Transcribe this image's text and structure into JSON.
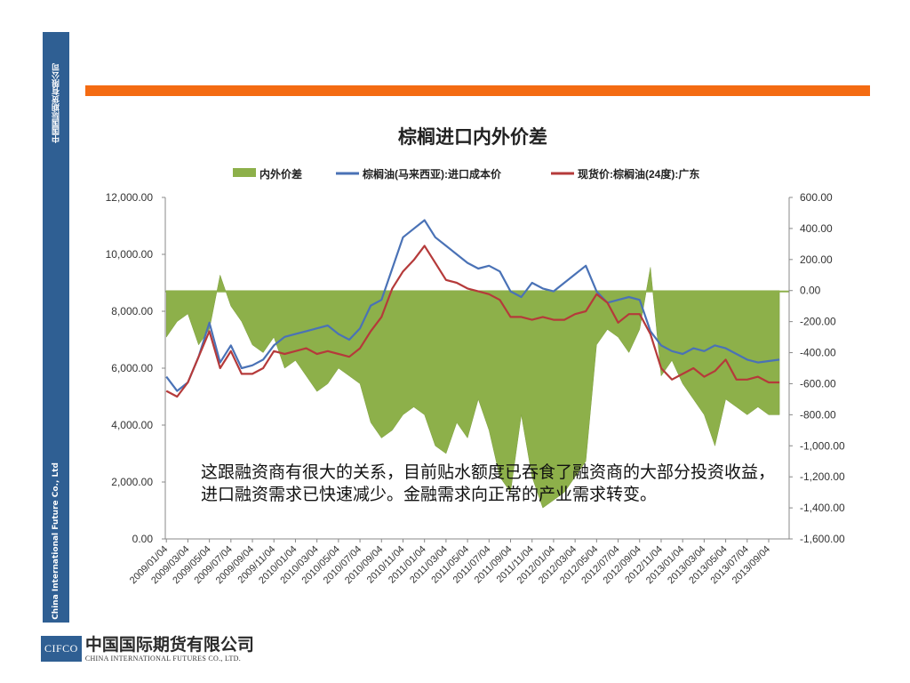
{
  "sidebar": {
    "company_cn": "中国国际期货有限公司",
    "company_en": "China International Future Co., Ltd"
  },
  "footer": {
    "logo_abbr": "CIFCO",
    "logo_cn": "中国国际期货有限公司",
    "logo_en": "CHINA INTERNATIONAL FUTURES CO., LTD."
  },
  "overlay_text": "这跟融资商有很大的关系，目前贴水额度已吞食了融资商的大部分投资收益，进口融资需求已快速减少。金融需求向正常的产业需求转变。",
  "colors": {
    "orange_bar": "#f46b12",
    "sidebar": "#2f5f93",
    "area": "#8db04a",
    "import_cost_line": "#4a72b6",
    "spot_line": "#b53a3a"
  },
  "chart_data": {
    "type": "area+line",
    "title": "棕榈进口内外价差",
    "legend": [
      "内外价差",
      "棕榈油(马来西亚):进口成本价",
      "现货价:棕榈油(24度):广东"
    ],
    "legend_position": "top",
    "y_left": {
      "min": 0,
      "max": 12000,
      "ticks": [
        "0.00",
        "2,000.00",
        "4,000.00",
        "6,000.00",
        "8,000.00",
        "10,000.00",
        "12,000.00"
      ]
    },
    "y_right": {
      "min": -1600,
      "max": 600,
      "ticks": [
        "-1,600.00",
        "-1,400.00",
        "-1,200.00",
        "-1,000.00",
        "-800.00",
        "-600.00",
        "-400.00",
        "-200.00",
        "0.00",
        "200.00",
        "400.00",
        "600.00"
      ]
    },
    "x_ticks": [
      "2009/01/04",
      "2009/03/04",
      "2009/05/04",
      "2009/07/04",
      "2009/09/04",
      "2009/11/04",
      "2010/01/04",
      "2010/03/04",
      "2010/05/04",
      "2010/07/04",
      "2010/09/04",
      "2010/11/04",
      "2011/01/04",
      "2011/03/04",
      "2011/05/04",
      "2011/07/04",
      "2011/09/04",
      "2011/11/04",
      "2012/01/04",
      "2012/03/04",
      "2012/05/04",
      "2012/07/04",
      "2012/09/04",
      "2012/11/04",
      "2013/01/04",
      "2013/03/04",
      "2013/05/04",
      "2013/07/04",
      "2013/09/04"
    ],
    "series": [
      {
        "name": "棕榈油(马来西亚):进口成本价",
        "axis": "left",
        "x": [
          "2009/01",
          "2009/02",
          "2009/03",
          "2009/04",
          "2009/05",
          "2009/06",
          "2009/07",
          "2009/08",
          "2009/09",
          "2009/10",
          "2009/11",
          "2009/12",
          "2010/01",
          "2010/02",
          "2010/03",
          "2010/04",
          "2010/05",
          "2010/06",
          "2010/07",
          "2010/08",
          "2010/09",
          "2010/10",
          "2010/11",
          "2010/12",
          "2011/01",
          "2011/02",
          "2011/03",
          "2011/04",
          "2011/05",
          "2011/06",
          "2011/07",
          "2011/08",
          "2011/09",
          "2011/10",
          "2011/11",
          "2011/12",
          "2012/01",
          "2012/02",
          "2012/03",
          "2012/04",
          "2012/05",
          "2012/06",
          "2012/07",
          "2012/08",
          "2012/09",
          "2012/10",
          "2012/11",
          "2012/12",
          "2013/01",
          "2013/02",
          "2013/03",
          "2013/04",
          "2013/05",
          "2013/06",
          "2013/07",
          "2013/08",
          "2013/09",
          "2013/10"
        ],
        "values": [
          5700,
          5200,
          5500,
          6400,
          7600,
          6200,
          6800,
          6000,
          6100,
          6300,
          6800,
          7100,
          7200,
          7300,
          7400,
          7500,
          7200,
          7000,
          7400,
          8200,
          8400,
          9500,
          10600,
          10900,
          11200,
          10600,
          10300,
          10000,
          9700,
          9500,
          9600,
          9400,
          8700,
          8500,
          9000,
          8800,
          8700,
          9000,
          9300,
          9600,
          8700,
          8300,
          8400,
          8500,
          8400,
          7300,
          6800,
          6600,
          6500,
          6700,
          6600,
          6800,
          6700,
          6500,
          6300,
          6200,
          6250,
          6300
        ]
      },
      {
        "name": "现货价:棕榈油(24度):广东",
        "axis": "left",
        "x": [
          "2009/01",
          "2009/02",
          "2009/03",
          "2009/04",
          "2009/05",
          "2009/06",
          "2009/07",
          "2009/08",
          "2009/09",
          "2009/10",
          "2009/11",
          "2009/12",
          "2010/01",
          "2010/02",
          "2010/03",
          "2010/04",
          "2010/05",
          "2010/06",
          "2010/07",
          "2010/08",
          "2010/09",
          "2010/10",
          "2010/11",
          "2010/12",
          "2011/01",
          "2011/02",
          "2011/03",
          "2011/04",
          "2011/05",
          "2011/06",
          "2011/07",
          "2011/08",
          "2011/09",
          "2011/10",
          "2011/11",
          "2011/12",
          "2012/01",
          "2012/02",
          "2012/03",
          "2012/04",
          "2012/05",
          "2012/06",
          "2012/07",
          "2012/08",
          "2012/09",
          "2012/10",
          "2012/11",
          "2012/12",
          "2013/01",
          "2013/02",
          "2013/03",
          "2013/04",
          "2013/05",
          "2013/06",
          "2013/07",
          "2013/08",
          "2013/09",
          "2013/10"
        ],
        "values": [
          5200,
          5000,
          5500,
          6400,
          7300,
          6000,
          6600,
          5800,
          5800,
          6000,
          6600,
          6500,
          6600,
          6700,
          6500,
          6600,
          6500,
          6400,
          6700,
          7300,
          7800,
          8800,
          9400,
          9800,
          10300,
          9700,
          9100,
          9000,
          8800,
          8700,
          8600,
          8400,
          7800,
          7800,
          7700,
          7800,
          7700,
          7700,
          7900,
          8000,
          8600,
          8300,
          7600,
          7900,
          7900,
          7200,
          6000,
          5600,
          5800,
          6000,
          5700,
          5900,
          6300,
          5600,
          5600,
          5700,
          5500,
          5500
        ]
      },
      {
        "name": "内外价差",
        "axis": "right",
        "type": "area",
        "x": [
          "2009/01",
          "2009/02",
          "2009/03",
          "2009/04",
          "2009/05",
          "2009/06",
          "2009/07",
          "2009/08",
          "2009/09",
          "2009/10",
          "2009/11",
          "2009/12",
          "2010/01",
          "2010/02",
          "2010/03",
          "2010/04",
          "2010/05",
          "2010/06",
          "2010/07",
          "2010/08",
          "2010/09",
          "2010/10",
          "2010/11",
          "2010/12",
          "2011/01",
          "2011/02",
          "2011/03",
          "2011/04",
          "2011/05",
          "2011/06",
          "2011/07",
          "2011/08",
          "2011/09",
          "2011/10",
          "2011/11",
          "2011/12",
          "2012/01",
          "2012/02",
          "2012/03",
          "2012/04",
          "2012/05",
          "2012/06",
          "2012/07",
          "2012/08",
          "2012/09",
          "2012/10",
          "2012/11",
          "2012/12",
          "2013/01",
          "2013/02",
          "2013/03",
          "2013/04",
          "2013/05",
          "2013/06",
          "2013/07",
          "2013/08",
          "2013/09",
          "2013/10"
        ],
        "values": [
          -300,
          -200,
          -150,
          -350,
          -250,
          100,
          -100,
          -200,
          -350,
          -400,
          -300,
          -500,
          -450,
          -550,
          -650,
          -600,
          -500,
          -550,
          -600,
          -850,
          -950,
          -900,
          -800,
          -750,
          -800,
          -1000,
          -1050,
          -850,
          -950,
          -700,
          -900,
          -1200,
          -1300,
          -800,
          -1200,
          -1400,
          -1350,
          -1300,
          -1200,
          -1100,
          -350,
          -250,
          -300,
          -400,
          -250,
          150,
          -550,
          -450,
          -600,
          -700,
          -800,
          -1000,
          -700,
          -750,
          -800,
          -750,
          -800,
          -800
        ]
      }
    ]
  }
}
